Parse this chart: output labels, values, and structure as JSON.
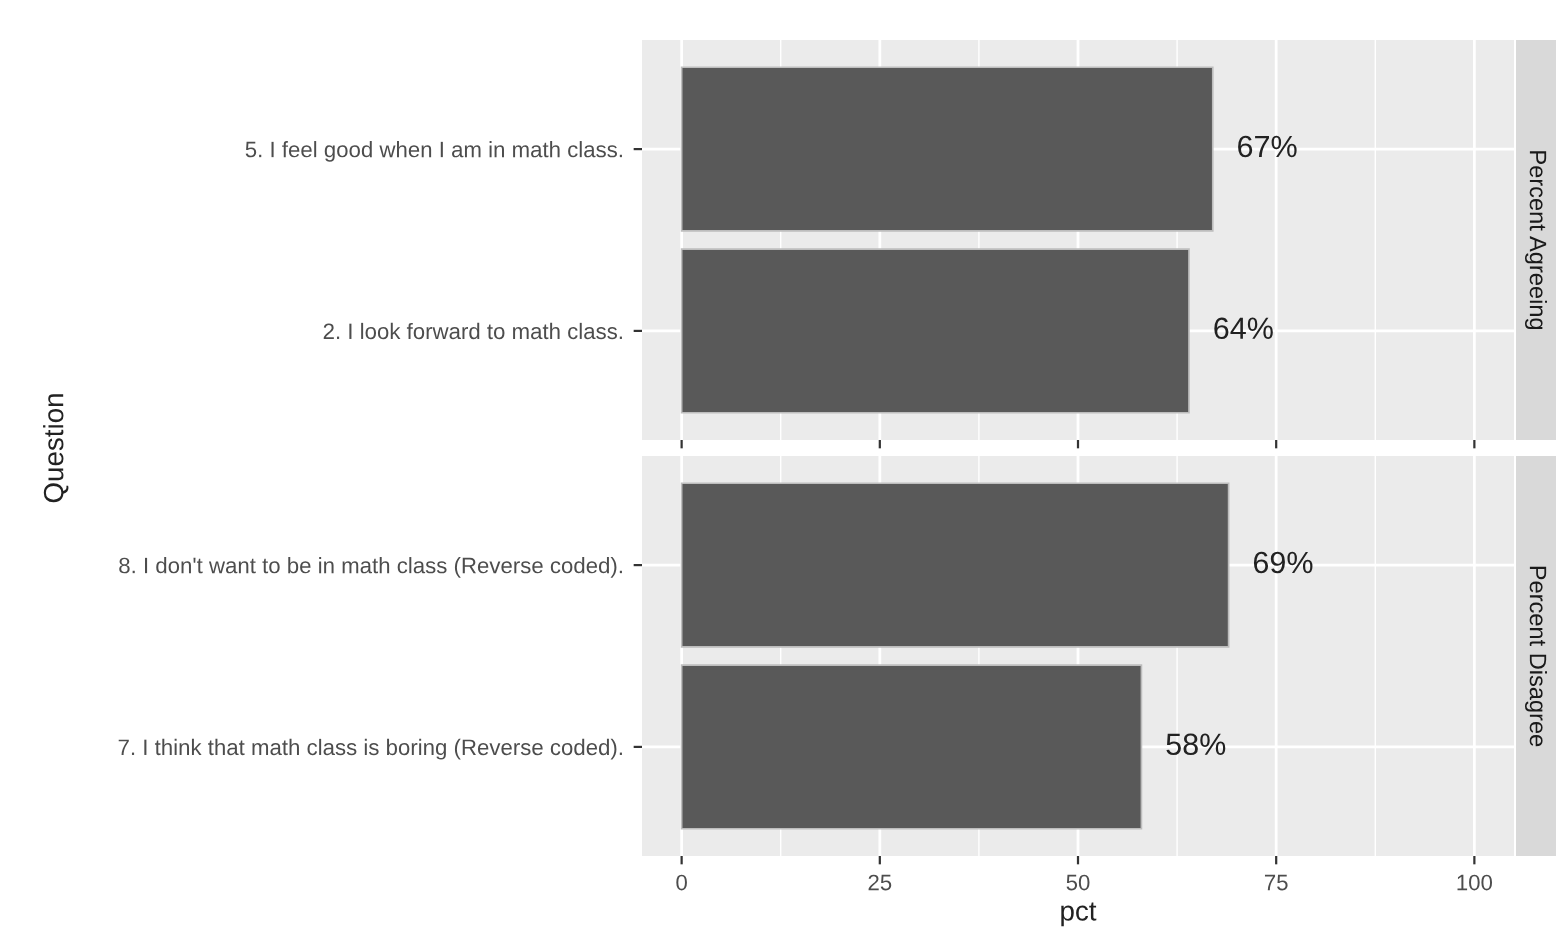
{
  "chart_data": [
    {
      "type": "bar",
      "orientation": "horizontal",
      "title": "Percent Agreeing",
      "ylabel": "Question",
      "categories": [
        "5. I feel good when I am in math class.",
        "2. I look forward to math class."
      ],
      "values": [
        67,
        64
      ],
      "value_labels": [
        "67%",
        "64%"
      ],
      "color": "#595959",
      "xlim": [
        -5,
        105
      ],
      "xticks": [
        0,
        25,
        50,
        75,
        100
      ],
      "grid": true,
      "tick_labels": "y"
    },
    {
      "type": "bar",
      "orientation": "horizontal",
      "title": "Percent Disagree",
      "xlabel": "pct",
      "categories": [
        "8. I don't want to be in math class (Reverse coded).",
        "7. I think that math class is boring (Reverse coded)."
      ],
      "values": [
        69,
        58
      ],
      "value_labels": [
        "69%",
        "58%"
      ],
      "color": "#595959",
      "xlim": [
        -5,
        105
      ],
      "xticks": [
        0,
        25,
        50,
        75,
        100
      ],
      "grid": true
    }
  ]
}
